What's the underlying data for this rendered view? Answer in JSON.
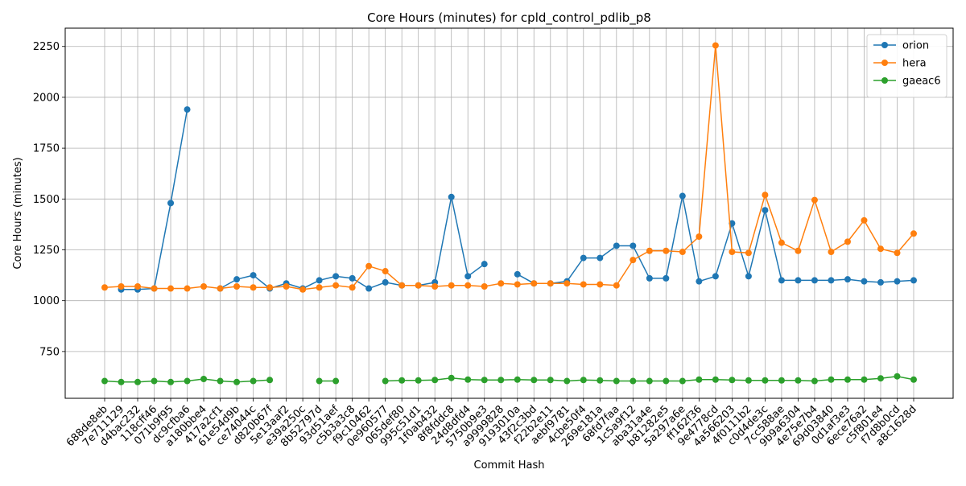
{
  "chart_data": {
    "type": "line",
    "title": "Core Hours (minutes) for cpld_control_pdlib_p8",
    "xlabel": "Commit Hash",
    "ylabel": "Core Hours (minutes)",
    "ylim": [
      520,
      2340
    ],
    "yticks": [
      750,
      1000,
      1250,
      1500,
      1750,
      2000,
      2250
    ],
    "grid": true,
    "legend_position": "top-right",
    "categories": [
      "688de8eb",
      "7e711129",
      "d4bac232",
      "118cff46",
      "071b9f95",
      "dc9cfba6",
      "a180bbe4",
      "417a2cf1",
      "61e54d9b",
      "ce74044c",
      "d820b67f",
      "5e13aaf2",
      "e39a250c",
      "8b52797d",
      "93d51aef",
      "c5b3a3c8",
      "f9c10462",
      "0e960577",
      "065def80",
      "995c51d1",
      "1f0ab432",
      "8f8fddc8",
      "24d8dfd4",
      "5750b9e3",
      "a9999828",
      "9193010a",
      "43f2c3bd",
      "f22b2e11",
      "aebf9781",
      "4cbe50f4",
      "269e181a",
      "68fd7faa",
      "1c5a9f12",
      "aba31a4e",
      "b81282e5",
      "5a297a6e",
      "ff162f36",
      "9e4778cd",
      "4a566203",
      "4f0111b2",
      "c0d4de3c",
      "7cc588ae",
      "9b9a6304",
      "4e75e7b4",
      "69d03840",
      "0d1af3e3",
      "6ece76a2",
      "c5f801e4",
      "f7d8b0cd",
      "a8c1628d"
    ],
    "series": [
      {
        "name": "orion",
        "color": "#1f77b4",
        "values": [
          null,
          1055,
          1055,
          1060,
          1480,
          1940,
          null,
          1060,
          1105,
          1125,
          1060,
          1085,
          1060,
          1100,
          1120,
          1110,
          1060,
          1090,
          1075,
          1075,
          1090,
          1510,
          1120,
          1180,
          null,
          1130,
          1085,
          1085,
          1095,
          1210,
          1210,
          1270,
          1270,
          1110,
          1110,
          1515,
          1095,
          1120,
          1380,
          1120,
          1445,
          1100,
          1100,
          1100,
          1100,
          1105,
          1095,
          1090,
          1095,
          1100
        ]
      },
      {
        "name": "hera",
        "color": "#ff7f0e",
        "values": [
          1065,
          1070,
          1070,
          1060,
          1060,
          1060,
          1070,
          1060,
          1070,
          1065,
          1065,
          1070,
          1055,
          1065,
          1075,
          1065,
          1170,
          1145,
          1075,
          1075,
          1070,
          1075,
          1075,
          1070,
          1085,
          1080,
          1085,
          1085,
          1085,
          1080,
          1080,
          1075,
          1200,
          1245,
          1245,
          1240,
          1315,
          2255,
          1240,
          1235,
          1520,
          1285,
          1245,
          1495,
          1240,
          1290,
          1395,
          1255,
          1235,
          1330
        ]
      },
      {
        "name": "gaeac6",
        "color": "#2ca02c",
        "values": [
          605,
          600,
          600,
          605,
          600,
          605,
          615,
          605,
          600,
          605,
          610,
          null,
          null,
          605,
          605,
          null,
          null,
          605,
          608,
          608,
          610,
          620,
          612,
          610,
          610,
          612,
          610,
          610,
          605,
          610,
          608,
          605,
          605,
          605,
          605,
          605,
          612,
          612,
          610,
          608,
          608,
          608,
          608,
          605,
          612,
          612,
          612,
          618,
          628,
          612
        ]
      }
    ]
  }
}
